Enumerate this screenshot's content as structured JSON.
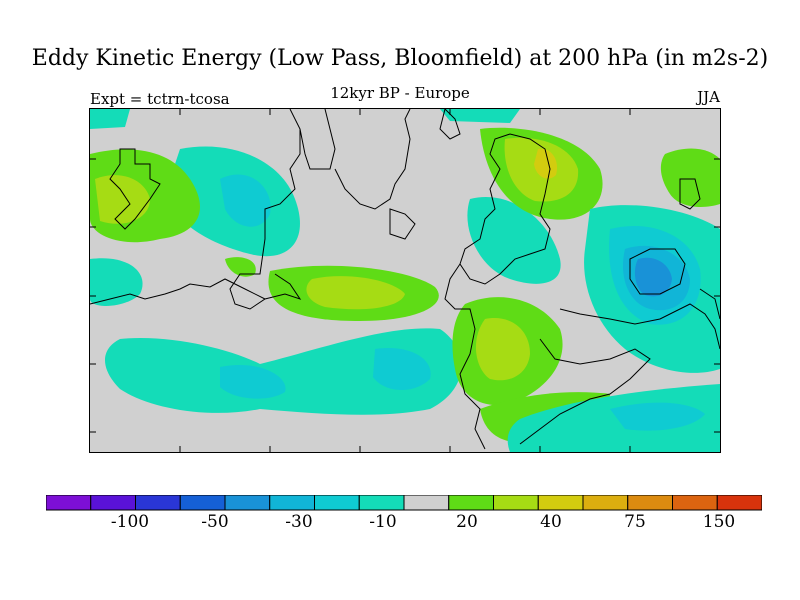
{
  "header": {
    "title": "Eddy Kinetic Energy (Low Pass, Bloomfield) at 200 hPa (in m2s-2)",
    "left": "Expt = tctrn-tcosa",
    "center": "12kyr BP - Europe",
    "right": "JJA"
  },
  "colorbar": {
    "colors": [
      "#7d0fd6",
      "#5a12d8",
      "#2a36d6",
      "#1560d6",
      "#1992d7",
      "#11b5d7",
      "#0fcbd2",
      "#14dcb8",
      "#d0d0d0",
      "#5fdc16",
      "#a6dc14",
      "#d3cc0f",
      "#dcae0f",
      "#dc8b10",
      "#dc6410",
      "#d8330c"
    ],
    "labels": [
      "-100",
      "-50",
      "-30",
      "-10",
      "20",
      "40",
      "75",
      "150"
    ]
  },
  "map": {
    "regions_described": [
      "cyan negative anomalies",
      "green/yellow positive anomalies",
      "blue negative core"
    ]
  }
}
